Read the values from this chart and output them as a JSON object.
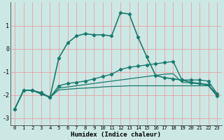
{
  "xlabel": "Humidex (Indice chaleur)",
  "x": [
    0,
    1,
    2,
    3,
    4,
    5,
    6,
    7,
    8,
    9,
    10,
    11,
    12,
    13,
    14,
    15,
    16,
    17,
    18,
    19,
    20,
    21,
    22,
    23
  ],
  "lines": [
    [
      -2.6,
      -1.8,
      -1.8,
      -1.9,
      -2.1,
      -0.4,
      0.25,
      0.55,
      0.65,
      0.6,
      0.6,
      0.55,
      1.55,
      1.5,
      0.5,
      -0.35,
      -1.15,
      -1.25,
      -1.3,
      -1.35,
      -1.45,
      -1.5,
      -1.55,
      -2.05
    ],
    [
      -2.6,
      -1.8,
      -1.8,
      -1.95,
      -2.1,
      -1.6,
      -1.5,
      -1.45,
      -1.4,
      -1.3,
      -1.2,
      -1.1,
      -0.9,
      -0.8,
      -0.75,
      -0.7,
      -0.65,
      -0.6,
      -0.55,
      -1.35,
      -1.35,
      -1.35,
      -1.4,
      -1.95
    ],
    [
      -2.6,
      -1.8,
      -1.8,
      -1.95,
      -2.1,
      -1.7,
      -1.65,
      -1.6,
      -1.55,
      -1.5,
      -1.45,
      -1.4,
      -1.35,
      -1.3,
      -1.25,
      -1.2,
      -1.15,
      -1.1,
      -1.08,
      -1.45,
      -1.48,
      -1.52,
      -1.58,
      -1.95
    ],
    [
      -2.6,
      -1.8,
      -1.8,
      -1.95,
      -2.1,
      -1.78,
      -1.75,
      -1.72,
      -1.7,
      -1.68,
      -1.65,
      -1.63,
      -1.62,
      -1.6,
      -1.6,
      -1.6,
      -1.6,
      -1.6,
      -1.6,
      -1.6,
      -1.6,
      -1.6,
      -1.6,
      -2.05
    ]
  ],
  "line_color": "#1a7a6e",
  "bg_color": "#cce8e4",
  "grid_color": "#e8a0a0",
  "yticks": [
    -3,
    -2,
    -1,
    0,
    1
  ],
  "ylim": [
    -3.3,
    2.0
  ],
  "xlim": [
    -0.5,
    23.5
  ]
}
